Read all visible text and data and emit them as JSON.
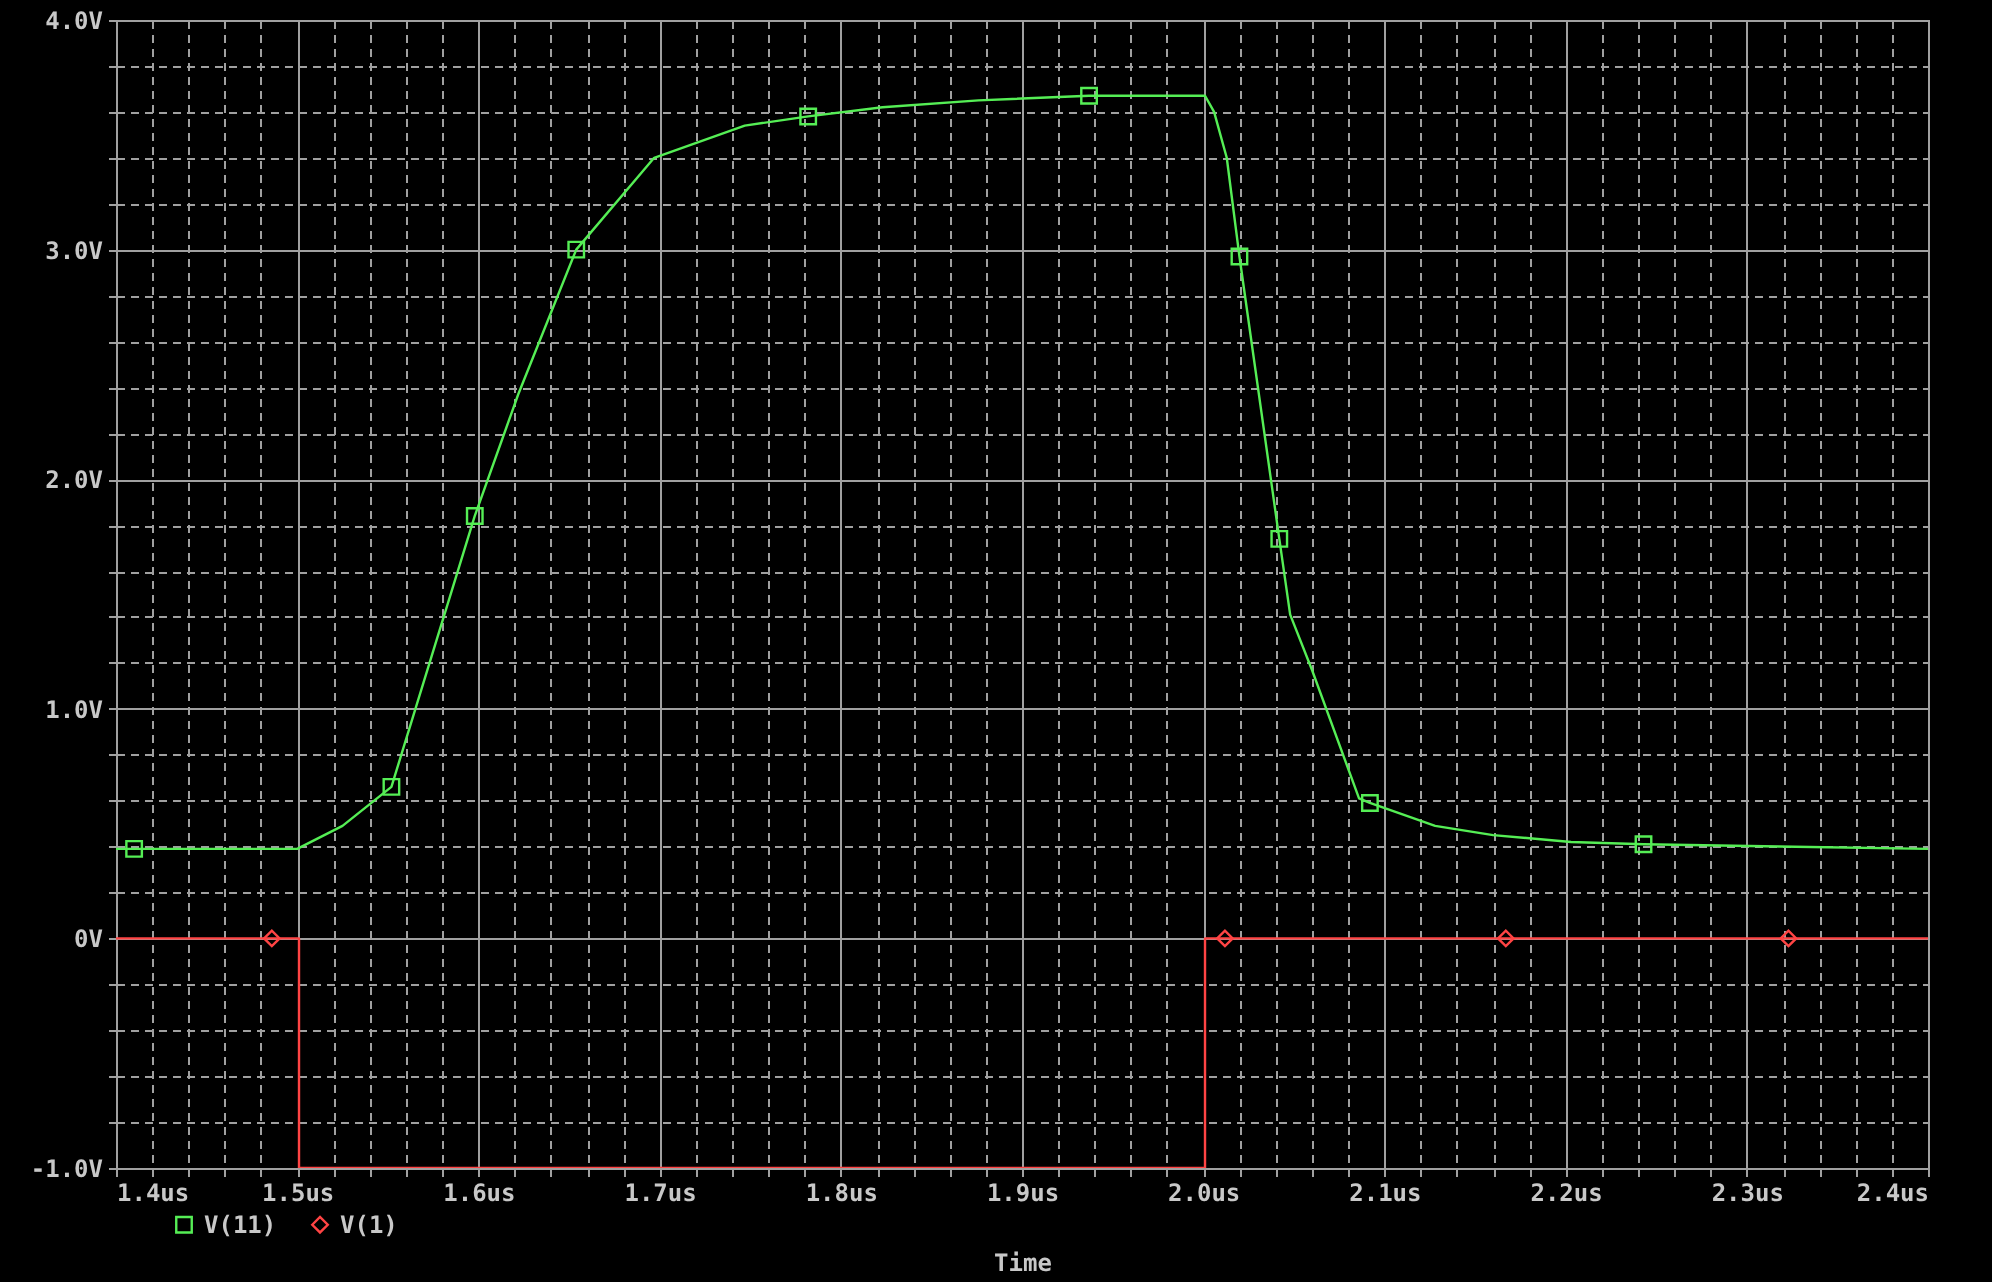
{
  "chart_data": {
    "type": "line",
    "xlabel": "Time",
    "xlim": [
      1.4,
      2.4
    ],
    "xticks": [
      {
        "value": 1.4,
        "label": "1.4us"
      },
      {
        "value": 1.42,
        "label": null
      },
      {
        "value": 1.44,
        "label": null
      },
      {
        "value": 1.46,
        "label": null
      },
      {
        "value": 1.48,
        "label": null
      },
      {
        "value": 1.5,
        "label": "1.5us"
      },
      {
        "value": 1.52,
        "label": null
      },
      {
        "value": 1.54,
        "label": null
      },
      {
        "value": 1.56,
        "label": null
      },
      {
        "value": 1.58,
        "label": null
      },
      {
        "value": 1.6,
        "label": "1.6us"
      },
      {
        "value": 1.62,
        "label": null
      },
      {
        "value": 1.64,
        "label": null
      },
      {
        "value": 1.66,
        "label": null
      },
      {
        "value": 1.68,
        "label": null
      },
      {
        "value": 1.7,
        "label": "1.7us"
      },
      {
        "value": 1.72,
        "label": null
      },
      {
        "value": 1.74,
        "label": null
      },
      {
        "value": 1.76,
        "label": null
      },
      {
        "value": 1.78,
        "label": null
      },
      {
        "value": 1.8,
        "label": "1.8us"
      },
      {
        "value": 1.82,
        "label": null
      },
      {
        "value": 1.84,
        "label": null
      },
      {
        "value": 1.86,
        "label": null
      },
      {
        "value": 1.88,
        "label": null
      },
      {
        "value": 1.9,
        "label": "1.9us"
      },
      {
        "value": 1.92,
        "label": null
      },
      {
        "value": 1.94,
        "label": null
      },
      {
        "value": 1.96,
        "label": null
      },
      {
        "value": 1.98,
        "label": null
      },
      {
        "value": 2.0,
        "label": "2.0us"
      },
      {
        "value": 2.02,
        "label": null
      },
      {
        "value": 2.04,
        "label": null
      },
      {
        "value": 2.06,
        "label": null
      },
      {
        "value": 2.08,
        "label": null
      },
      {
        "value": 2.1,
        "label": "2.1us"
      },
      {
        "value": 2.12,
        "label": null
      },
      {
        "value": 2.14,
        "label": null
      },
      {
        "value": 2.16,
        "label": null
      },
      {
        "value": 2.18,
        "label": null
      },
      {
        "value": 2.2,
        "label": "2.2us"
      },
      {
        "value": 2.22,
        "label": null
      },
      {
        "value": 2.24,
        "label": null
      },
      {
        "value": 2.26,
        "label": null
      },
      {
        "value": 2.28,
        "label": null
      },
      {
        "value": 2.3,
        "label": "2.3us"
      },
      {
        "value": 2.32,
        "label": null
      },
      {
        "value": 2.34,
        "label": null
      },
      {
        "value": 2.36,
        "label": null
      },
      {
        "value": 2.38,
        "label": null
      },
      {
        "value": 2.4,
        "label": "2.4us"
      }
    ],
    "ylim": [
      -1.0,
      4.0
    ],
    "yticks": [
      {
        "value": -1.0,
        "label": "-1.0V"
      },
      {
        "value": -0.8,
        "label": null
      },
      {
        "value": -0.6,
        "label": null
      },
      {
        "value": -0.4,
        "label": null
      },
      {
        "value": -0.2,
        "label": null
      },
      {
        "value": 0,
        "label": "0V"
      },
      {
        "value": 0.2,
        "label": null
      },
      {
        "value": 0.4,
        "label": null
      },
      {
        "value": 0.6,
        "label": null
      },
      {
        "value": 0.8,
        "label": null
      },
      {
        "value": 1.0,
        "label": "1.0V"
      },
      {
        "value": 1.2,
        "label": null
      },
      {
        "value": 1.4,
        "label": null
      },
      {
        "value": 1.6,
        "label": null
      },
      {
        "value": 1.8,
        "label": null
      },
      {
        "value": 2.0,
        "label": "2.0V"
      },
      {
        "value": 2.2,
        "label": null
      },
      {
        "value": 2.4,
        "label": null
      },
      {
        "value": 2.6,
        "label": null
      },
      {
        "value": 2.8,
        "label": null
      },
      {
        "value": 3.0,
        "label": "3.0V"
      },
      {
        "value": 3.2,
        "label": null
      },
      {
        "value": 3.4,
        "label": null
      },
      {
        "value": 3.6,
        "label": null
      },
      {
        "value": 3.8,
        "label": null
      },
      {
        "value": 4.0,
        "label": "4.0V"
      }
    ],
    "grid": true,
    "legend": "bottom left",
    "series": [
      {
        "color": "#55ee55",
        "x": [
          1.4,
          1.5,
          1.525,
          1.552,
          1.598,
          1.622,
          1.654,
          1.697,
          1.747,
          1.782,
          1.823,
          1.876,
          1.937,
          2.001,
          2.006,
          2.013,
          2.02,
          2.042,
          2.048,
          2.06,
          2.086,
          2.092,
          2.128,
          2.16,
          2.203,
          2.243,
          2.318,
          2.4
        ],
        "values": [
          0.39,
          0.39,
          0.49,
          0.66,
          1.84,
          2.37,
          3.0,
          3.4,
          3.54,
          3.58,
          3.62,
          3.65,
          3.67,
          3.67,
          3.6,
          3.4,
          2.97,
          1.74,
          1.41,
          1.17,
          0.61,
          0.59,
          0.49,
          0.45,
          0.42,
          0.41,
          0.4,
          0.39
        ]
      },
      {
        "color": "#ff4444",
        "x": [
          1.4,
          1.501,
          1.501,
          2.001,
          2.001,
          2.4
        ],
        "values": [
          0,
          0,
          -1.0,
          -1.0,
          0,
          0
        ]
      },
      {
        "type": "scatter",
        "name": "V(11)",
        "color": "#55ee55",
        "marker": "square",
        "x": [
          1.41,
          1.552,
          1.598,
          1.654,
          1.782,
          1.937,
          2.02,
          2.042,
          2.092,
          2.243
        ],
        "values": [
          0.39,
          0.66,
          1.84,
          3.0,
          3.58,
          3.67,
          2.97,
          1.74,
          0.59,
          0.41
        ]
      },
      {
        "type": "scatter",
        "name": "V(1)",
        "color": "#ff4444",
        "marker": "diamond",
        "x": [
          1.486,
          2.012,
          2.167,
          2.323
        ],
        "values": [
          0,
          0,
          0,
          0
        ]
      }
    ]
  }
}
